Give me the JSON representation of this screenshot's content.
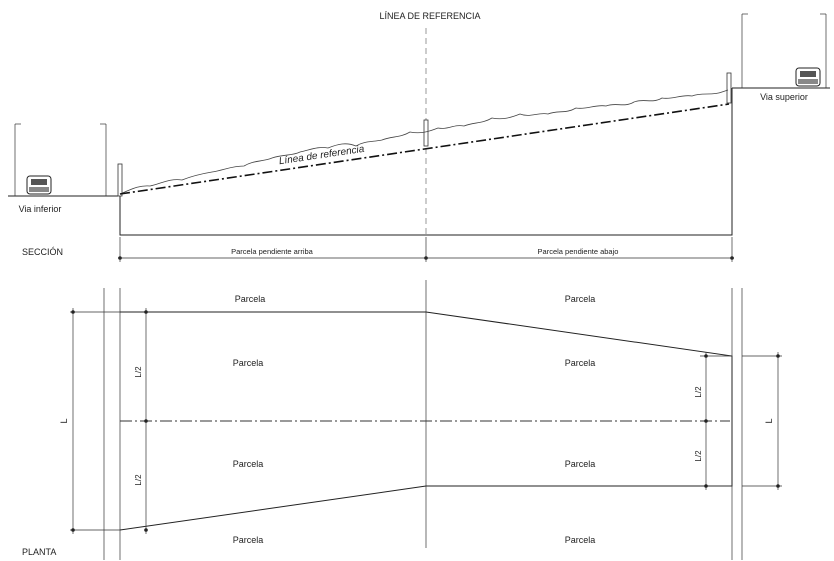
{
  "section": {
    "title": "LÍNEA DE REFERENCIA",
    "label": "SECCIÓN",
    "reference_line_label": "Línea de referencia",
    "lower_road": "Via inferior",
    "upper_road": "Via superior",
    "dim_left": "Parcela pendiente arriba",
    "dim_right": "Parcela pendiente abajo"
  },
  "plan": {
    "label": "PLANTA",
    "parcel_label": "Parcela",
    "dim_total": "L",
    "dim_half": "L/2"
  }
}
